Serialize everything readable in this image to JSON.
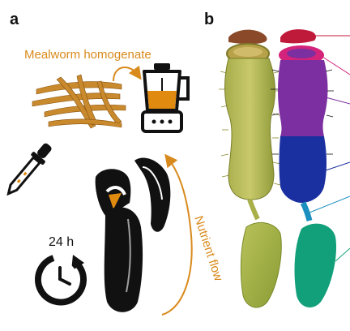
{
  "panels": {
    "a": {
      "label": "a"
    },
    "b": {
      "label": "b"
    }
  },
  "labels": {
    "mealworm_homogenate": "Mealworm homogenate",
    "nutrient_flow": "Nutrient flow",
    "duration": "24 h"
  },
  "colors": {
    "orange": "#d98a1c",
    "peristome": "#d4237a",
    "lid": "#c01a3a",
    "upper_pitcher": "#7b2fa0",
    "lower_pitcher": "#1a2fa0",
    "tendril": "#1a8fc0",
    "leaf": "#12a07a"
  },
  "icons": [
    "dropper-icon",
    "blender-icon",
    "pitcher-silhouette-icon",
    "timer-icon",
    "curved-arrow-icon"
  ]
}
